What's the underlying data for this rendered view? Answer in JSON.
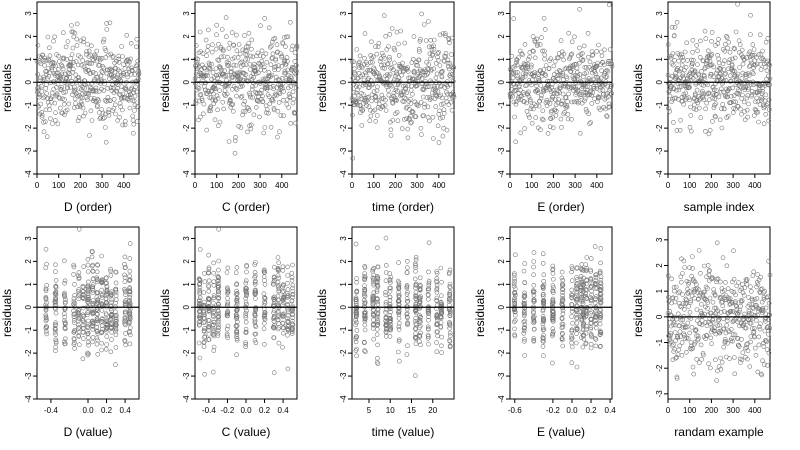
{
  "chart_data": [
    {
      "type": "scatter",
      "xlabel": "D (order)",
      "ylabel": "residuals",
      "xlim": [
        0,
        470
      ],
      "ylim": [
        -4,
        3.5
      ],
      "xticks": [
        "0",
        "100",
        "200",
        "300",
        "400"
      ],
      "yticks": [
        "-4",
        "-3",
        "-2",
        "-1",
        "0",
        "1",
        "2",
        "3"
      ],
      "reference_line_y": 0,
      "n_points_est": 470,
      "x_kind": "index",
      "bias": 0,
      "scale": 0.95
    },
    {
      "type": "scatter",
      "xlabel": "C (order)",
      "ylabel": "residuals",
      "xlim": [
        0,
        470
      ],
      "ylim": [
        -4,
        3.5
      ],
      "xticks": [
        "0",
        "100",
        "200",
        "300",
        "400"
      ],
      "yticks": [
        "-4",
        "-3",
        "-2",
        "-1",
        "0",
        "1",
        "2",
        "3"
      ],
      "reference_line_y": 0,
      "n_points_est": 470,
      "x_kind": "index",
      "bias": 0,
      "scale": 0.95
    },
    {
      "type": "scatter",
      "xlabel": "time (order)",
      "ylabel": "residuals",
      "xlim": [
        0,
        470
      ],
      "ylim": [
        -4,
        3.5
      ],
      "xticks": [
        "0",
        "100",
        "200",
        "300",
        "400"
      ],
      "yticks": [
        "-4",
        "-3",
        "-2",
        "-1",
        "0",
        "1",
        "2",
        "3"
      ],
      "reference_line_y": 0,
      "n_points_est": 470,
      "x_kind": "index",
      "bias": 0,
      "scale": 0.95
    },
    {
      "type": "scatter",
      "xlabel": "E (order)",
      "ylabel": "residuals",
      "xlim": [
        0,
        470
      ],
      "ylim": [
        -4,
        3.5
      ],
      "xticks": [
        "0",
        "100",
        "200",
        "300",
        "400"
      ],
      "yticks": [
        "-4",
        "-3",
        "-2",
        "-1",
        "0",
        "1",
        "2",
        "3"
      ],
      "reference_line_y": 0,
      "n_points_est": 470,
      "x_kind": "index",
      "bias": 0,
      "scale": 0.95
    },
    {
      "type": "scatter",
      "xlabel": "sample index",
      "ylabel": "residuals",
      "xlim": [
        0,
        470
      ],
      "ylim": [
        -4,
        3.5
      ],
      "xticks": [
        "0",
        "100",
        "200",
        "300",
        "400"
      ],
      "yticks": [
        "-4",
        "-3",
        "-2",
        "-1",
        "0",
        "1",
        "2",
        "3"
      ],
      "reference_line_y": 0,
      "n_points_est": 470,
      "x_kind": "index",
      "bias": 0,
      "scale": 0.95
    },
    {
      "type": "scatter",
      "xlabel": "D (value)",
      "ylabel": "residuals",
      "xlim": [
        -0.55,
        0.55
      ],
      "ylim": [
        -4,
        3.5
      ],
      "xticks": [
        "-0.4",
        "0.0",
        "0.2",
        "0.4"
      ],
      "yticks": [
        "-4",
        "-3",
        "-2",
        "-1",
        "0",
        "1",
        "2",
        "3"
      ],
      "reference_line_y": 0,
      "n_points_est": 470,
      "x_kind": "clusters",
      "x_clusters": [
        -0.45,
        -0.35,
        -0.25,
        -0.15,
        -0.1,
        -0.05,
        0.0,
        0.05,
        0.1,
        0.15,
        0.2,
        0.25,
        0.3,
        0.4,
        0.45
      ],
      "bias": 0,
      "scale": 0.95
    },
    {
      "type": "scatter",
      "xlabel": "C (value)",
      "ylabel": "residuals",
      "xlim": [
        -0.55,
        0.55
      ],
      "ylim": [
        -4,
        3.5
      ],
      "xticks": [
        "-0.4",
        "-0.2",
        "0.0",
        "0.2",
        "0.4"
      ],
      "yticks": [
        "-4",
        "-3",
        "-2",
        "-1",
        "0",
        "1",
        "2",
        "3"
      ],
      "reference_line_y": 0,
      "n_points_est": 470,
      "x_kind": "clusters",
      "x_clusters": [
        -0.5,
        -0.45,
        -0.4,
        -0.35,
        -0.3,
        -0.2,
        -0.1,
        0.0,
        0.1,
        0.2,
        0.3,
        0.35,
        0.4,
        0.45,
        0.5
      ],
      "bias": 0,
      "scale": 0.95
    },
    {
      "type": "scatter",
      "xlabel": "time (value)",
      "ylabel": "residuals",
      "xlim": [
        1,
        25
      ],
      "ylim": [
        -4,
        3.5
      ],
      "xticks": [
        "5",
        "10",
        "15",
        "20"
      ],
      "yticks": [
        "-4",
        "-3",
        "-2",
        "-1",
        "0",
        "1",
        "2",
        "3"
      ],
      "reference_line_y": 0,
      "n_points_est": 470,
      "x_kind": "clusters",
      "x_clusters": [
        2,
        4,
        6,
        7,
        9,
        10,
        12,
        14,
        16,
        17,
        19,
        21,
        22,
        24
      ],
      "bias": 0,
      "scale": 0.95
    },
    {
      "type": "scatter",
      "xlabel": "E (value)",
      "ylabel": "residuals",
      "xlim": [
        -0.65,
        0.42
      ],
      "ylim": [
        -4,
        3.5
      ],
      "xticks": [
        "-0.6",
        "-0.2",
        "0.0",
        "0.2",
        "0.4"
      ],
      "yticks": [
        "-4",
        "-3",
        "-2",
        "-1",
        "0",
        "1",
        "2",
        "3"
      ],
      "reference_line_y": 0,
      "n_points_est": 470,
      "x_kind": "clusters",
      "x_clusters": [
        -0.6,
        -0.5,
        -0.4,
        -0.3,
        -0.2,
        -0.1,
        0.0,
        0.05,
        0.1,
        0.12,
        0.15,
        0.2,
        0.25,
        0.3
      ],
      "bias": 0,
      "scale": 0.95
    },
    {
      "type": "scatter",
      "xlabel": "randam example",
      "ylabel": "residuals",
      "xlim": [
        0,
        470
      ],
      "ylim": [
        -3.2,
        3.5
      ],
      "xticks": [
        "0",
        "100",
        "200",
        "300",
        "400"
      ],
      "yticks": [
        "-3",
        "-2",
        "-1",
        "0",
        "1",
        "2",
        "3"
      ],
      "reference_line_y": 0,
      "n_points_est": 470,
      "x_kind": "index",
      "bias": 0,
      "scale": 1.0
    }
  ]
}
